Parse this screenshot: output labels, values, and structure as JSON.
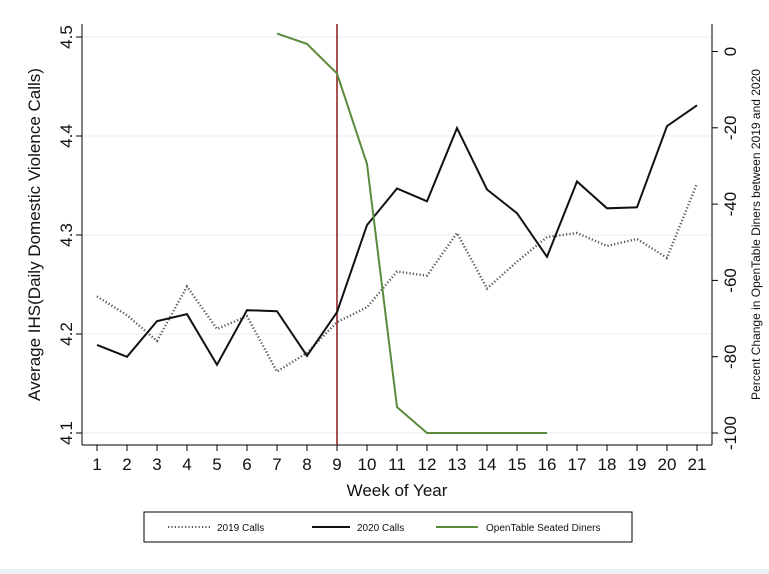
{
  "chart_data": {
    "type": "line",
    "x": [
      1,
      2,
      3,
      4,
      5,
      6,
      7,
      8,
      9,
      10,
      11,
      12,
      13,
      14,
      15,
      16,
      17,
      18,
      19,
      20,
      21
    ],
    "xlabel": "Week of Year",
    "ylabel": "Average IHS(Daily Domestic Violence Calls)",
    "y2label": "Percent Change in OpenTable Diners between 2019 and 2020",
    "ylim": [
      4.1,
      4.5
    ],
    "y2lim": [
      -100,
      5
    ],
    "yticks": [
      4.1,
      4.2,
      4.3,
      4.4,
      4.5
    ],
    "y2ticks": [
      -100,
      -80,
      -60,
      -40,
      -20,
      0
    ],
    "grid": true,
    "legend_position": "bottom",
    "vline_x": 9,
    "colors": {
      "calls_2019": "#555555",
      "calls_2020": "#111111",
      "opentable": "#5a8a3c",
      "vline": "#8b1a1a",
      "background": "#eaf1f5",
      "plot": "#ffffff"
    },
    "series": [
      {
        "name": "2019 Calls",
        "axis": "left",
        "style": "dotted",
        "x": [
          1,
          2,
          3,
          4,
          5,
          6,
          7,
          8,
          9,
          10,
          11,
          12,
          13,
          14,
          15,
          16,
          17,
          18,
          19,
          20,
          21
        ],
        "values": [
          4.238,
          4.219,
          4.193,
          4.248,
          4.205,
          4.218,
          4.162,
          4.181,
          4.212,
          4.227,
          4.263,
          4.259,
          4.302,
          4.246,
          4.273,
          4.298,
          4.302,
          4.289,
          4.296,
          4.277,
          4.352
        ]
      },
      {
        "name": "2020 Calls",
        "axis": "left",
        "style": "solid",
        "x": [
          1,
          2,
          3,
          4,
          5,
          6,
          7,
          8,
          9,
          10,
          11,
          12,
          13,
          14,
          15,
          16,
          17,
          18,
          19,
          20,
          21
        ],
        "values": [
          4.189,
          4.177,
          4.213,
          4.22,
          4.169,
          4.224,
          4.223,
          4.178,
          4.222,
          4.31,
          4.347,
          4.334,
          4.408,
          4.346,
          4.322,
          4.278,
          4.354,
          4.327,
          4.328,
          4.41,
          4.431
        ]
      },
      {
        "name": "OpenTable Seated Diners",
        "axis": "right",
        "style": "solid",
        "x": [
          7,
          8,
          9,
          10,
          11,
          12,
          13,
          14,
          15,
          16
        ],
        "values": [
          4.7,
          2.0,
          -5.8,
          -29.5,
          -93.2,
          -100,
          -100,
          -100,
          -100,
          -100
        ]
      }
    ]
  }
}
